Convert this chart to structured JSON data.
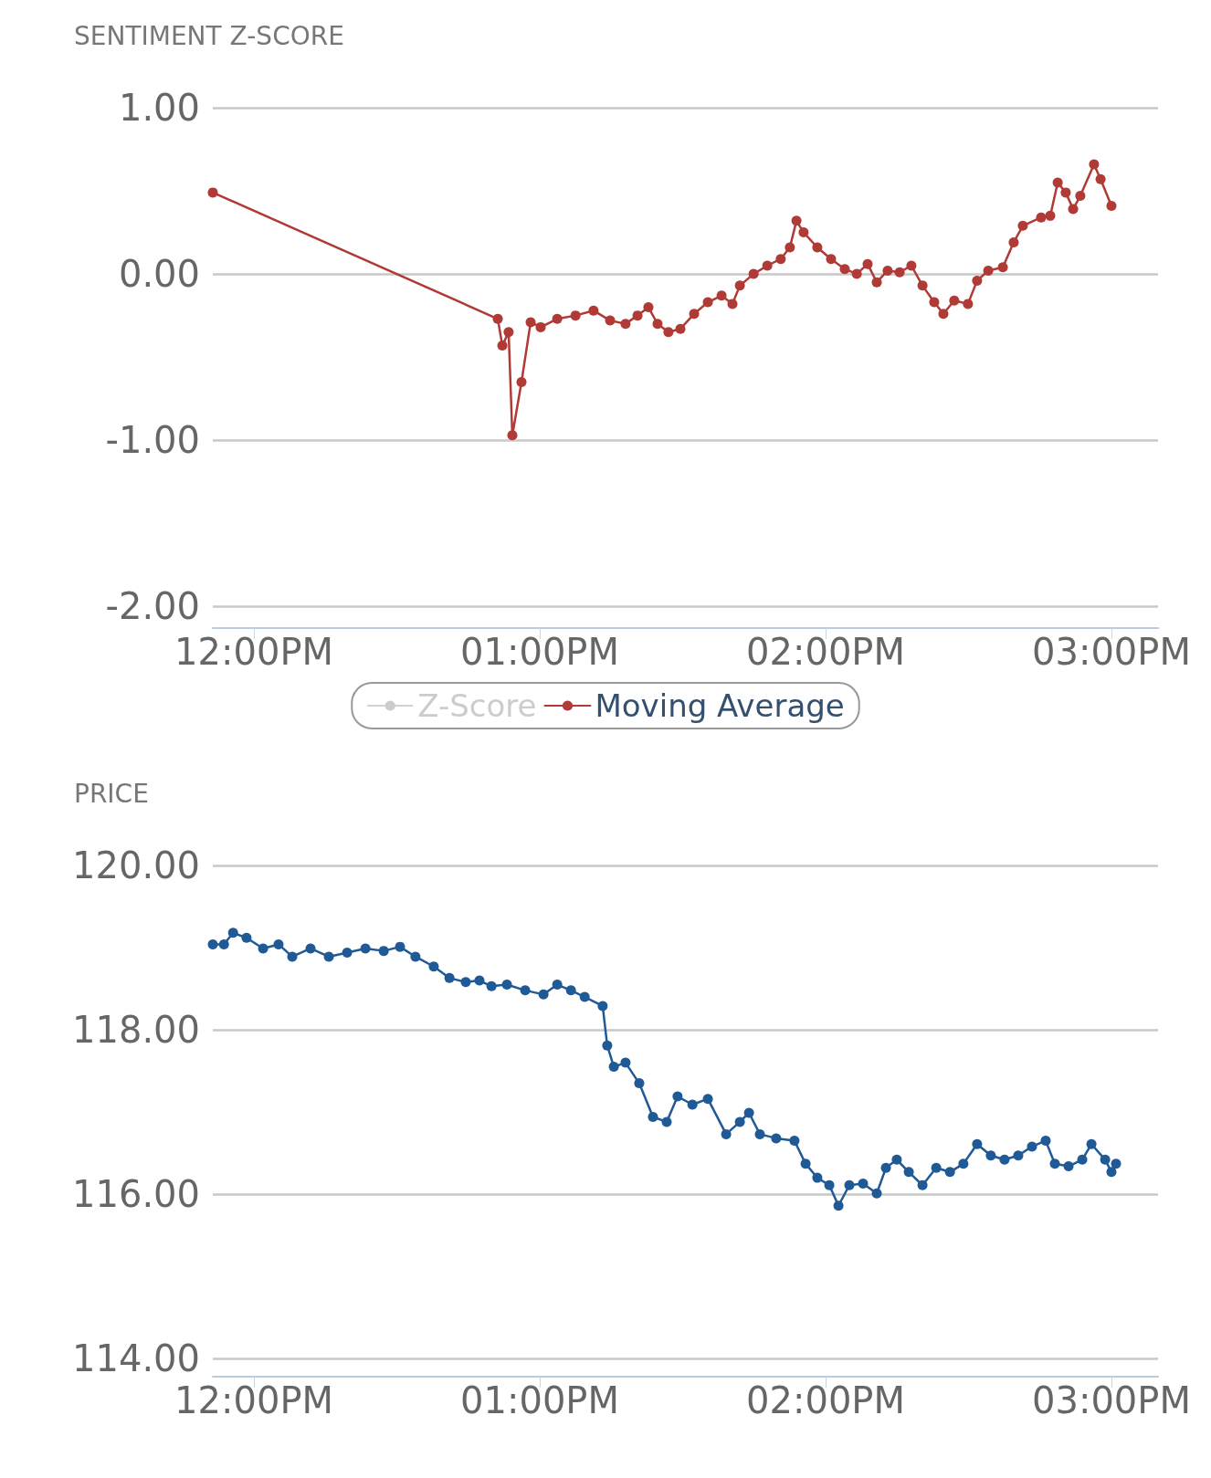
{
  "chart_data": [
    {
      "type": "line",
      "ylabel": "SENTIMENT Z-SCORE",
      "legend": "bottom",
      "grid": "y",
      "marker": "circle",
      "line_style": "solid",
      "xlim": [
        11.856,
        15.163
      ],
      "xticks": [
        {
          "value": 12,
          "label": "12:00PM"
        },
        {
          "value": 13,
          "label": "01:00PM"
        },
        {
          "value": 14,
          "label": "02:00PM"
        },
        {
          "value": 15,
          "label": "03:00PM"
        }
      ],
      "ylim": [
        -2.13,
        1.0
      ],
      "yticks": [
        {
          "value": -2,
          "label": "-2.00"
        },
        {
          "value": -1,
          "label": "-1.00"
        },
        {
          "value": 0,
          "label": "0.00"
        },
        {
          "value": 1,
          "label": "1.00"
        }
      ],
      "series": [
        {
          "name": "Z-Score",
          "color": "#c8c8c8"
        },
        {
          "name": "Moving Average",
          "color": "#b03a35",
          "x": [
            11.856,
            12.853,
            12.869,
            12.891,
            12.904,
            12.936,
            12.968,
            13.003,
            13.061,
            13.125,
            13.188,
            13.246,
            13.3,
            13.342,
            13.38,
            13.412,
            13.45,
            13.492,
            13.54,
            13.588,
            13.636,
            13.674,
            13.7,
            13.748,
            13.796,
            13.843,
            13.875,
            13.898,
            13.923,
            13.971,
            14.019,
            14.067,
            14.109,
            14.147,
            14.179,
            14.217,
            14.259,
            14.3,
            14.339,
            14.38,
            14.412,
            14.45,
            14.498,
            14.53,
            14.569,
            14.62,
            14.658,
            14.69,
            14.754,
            14.786,
            14.812,
            14.84,
            14.866,
            14.891,
            14.939,
            14.962,
            15.0
          ],
          "values": [
            0.49,
            -0.27,
            -0.43,
            -0.35,
            -0.97,
            -0.65,
            -0.29,
            -0.32,
            -0.27,
            -0.25,
            -0.22,
            -0.28,
            -0.3,
            -0.25,
            -0.2,
            -0.3,
            -0.35,
            -0.33,
            -0.24,
            -0.17,
            -0.13,
            -0.18,
            -0.07,
            0,
            0.05,
            0.09,
            0.16,
            0.32,
            0.25,
            0.16,
            0.09,
            0.03,
            0,
            0.06,
            -0.05,
            0.02,
            0.01,
            0.05,
            -0.07,
            -0.17,
            -0.24,
            -0.16,
            -0.18,
            -0.04,
            0.02,
            0.04,
            0.19,
            0.29,
            0.34,
            0.35,
            0.55,
            0.49,
            0.39,
            0.47,
            0.66,
            0.57,
            0.41
          ]
        }
      ]
    },
    {
      "type": "line",
      "ylabel": "PRICE",
      "legend": false,
      "grid": "y",
      "marker": "circle",
      "line_style": "solid",
      "xlim": [
        11.856,
        15.163
      ],
      "xticks": [
        {
          "value": 12,
          "label": "12:00PM"
        },
        {
          "value": 13,
          "label": "01:00PM"
        },
        {
          "value": 14,
          "label": "02:00PM"
        },
        {
          "value": 15,
          "label": "03:00PM"
        }
      ],
      "ylim": [
        113.78,
        120
      ],
      "yticks": [
        {
          "value": 114,
          "label": "114.00"
        },
        {
          "value": 116,
          "label": "116.00"
        },
        {
          "value": 118,
          "label": "118.00"
        },
        {
          "value": 120,
          "label": "120.00"
        }
      ],
      "series": [
        {
          "color": "#1f5a96",
          "x": [
            11.856,
            11.895,
            11.927,
            11.974,
            12.032,
            12.086,
            12.134,
            12.198,
            12.262,
            12.326,
            12.39,
            12.454,
            12.511,
            12.565,
            12.629,
            12.684,
            12.741,
            12.789,
            12.831,
            12.885,
            12.949,
            13.013,
            13.061,
            13.109,
            13.157,
            13.22,
            13.236,
            13.259,
            13.3,
            13.348,
            13.396,
            13.444,
            13.482,
            13.534,
            13.588,
            13.652,
            13.7,
            13.732,
            13.77,
            13.827,
            13.891,
            13.93,
            13.971,
            14.013,
            14.045,
            14.083,
            14.131,
            14.179,
            14.211,
            14.249,
            14.291,
            14.339,
            14.387,
            14.435,
            14.482,
            14.53,
            14.578,
            14.626,
            14.674,
            14.722,
            14.77,
            14.802,
            14.85,
            14.898,
            14.93,
            14.978,
            15.0,
            15.016
          ],
          "values": [
            119.04,
            119.04,
            119.18,
            119.12,
            118.99,
            119.04,
            118.89,
            118.99,
            118.89,
            118.94,
            118.99,
            118.96,
            119.01,
            118.89,
            118.77,
            118.63,
            118.58,
            118.6,
            118.53,
            118.55,
            118.48,
            118.43,
            118.55,
            118.48,
            118.4,
            118.29,
            117.81,
            117.55,
            117.6,
            117.35,
            116.94,
            116.88,
            117.19,
            117.09,
            117.16,
            116.73,
            116.88,
            116.99,
            116.73,
            116.68,
            116.65,
            116.37,
            116.2,
            116.11,
            115.86,
            116.11,
            116.13,
            116.01,
            116.32,
            116.42,
            116.27,
            116.11,
            116.32,
            116.27,
            116.37,
            116.61,
            116.47,
            116.42,
            116.47,
            116.58,
            116.65,
            116.37,
            116.34,
            116.42,
            116.61,
            116.42,
            116.27,
            116.37
          ]
        }
      ]
    }
  ]
}
